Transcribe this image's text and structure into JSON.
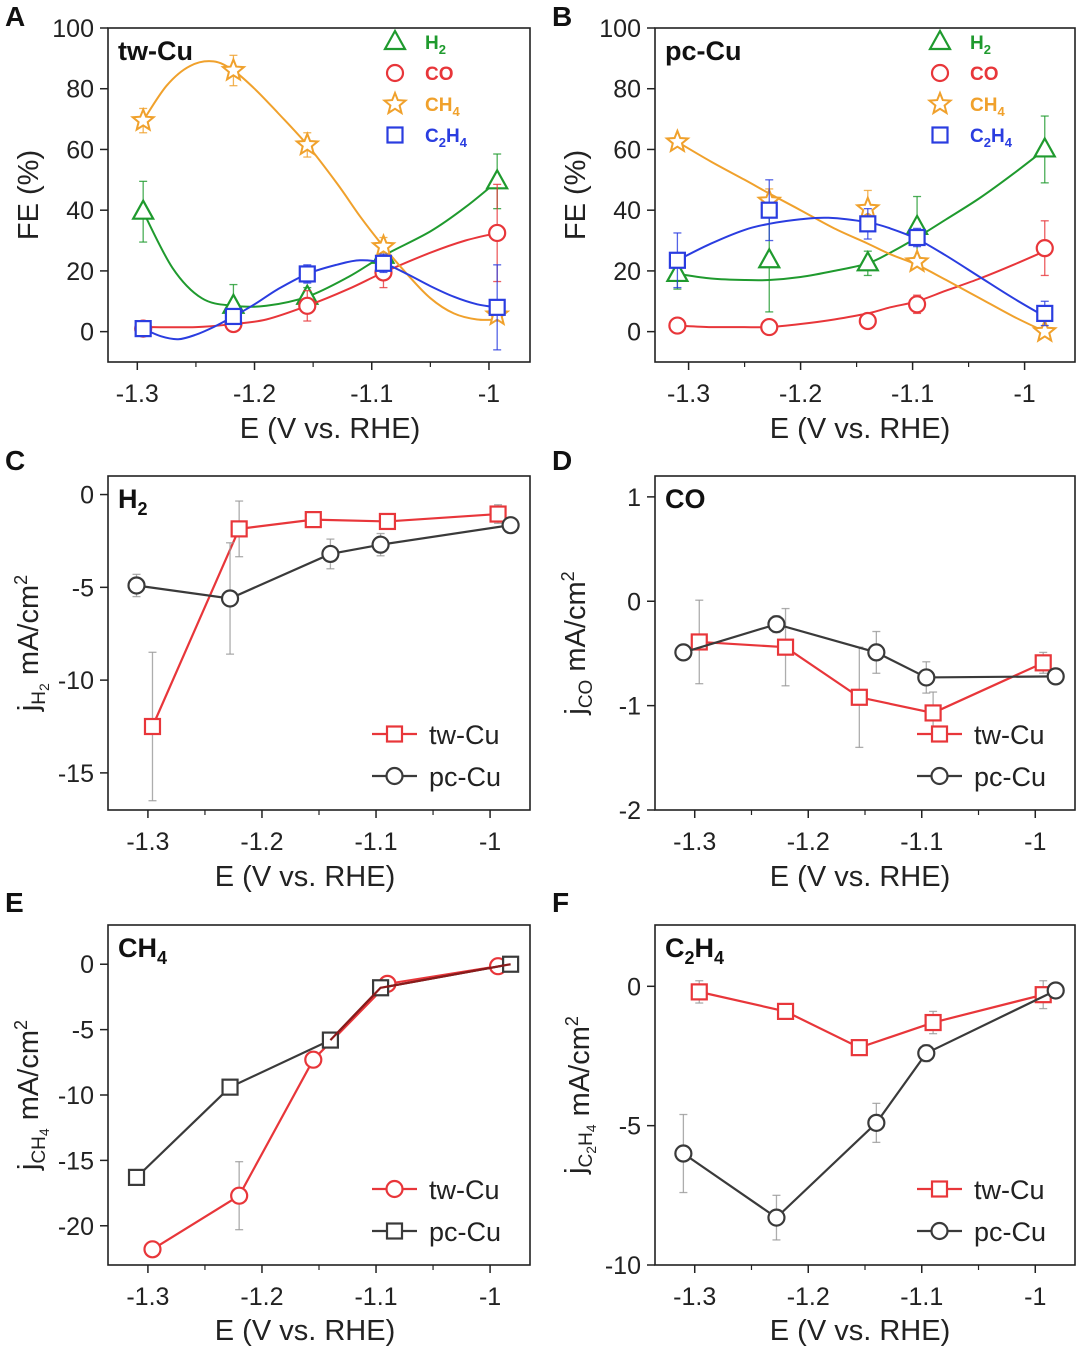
{
  "figure": {
    "colors": {
      "H2": "#1f9a2e",
      "CO": "#e8363a",
      "CH4": "#f0a12c",
      "C2H4": "#2a3de0",
      "tw": "#e8363a",
      "pc": "#3a3a3a",
      "axis": "#222222",
      "err": "#999999"
    }
  },
  "chart_data": [
    {
      "id": "A",
      "panel_label": "A",
      "type": "scatter",
      "title": "tw-Cu",
      "xlabel": "E (V vs. RHE)",
      "ylabel": "FE (%)",
      "xlim": [
        -1.325,
        -0.965
      ],
      "ylim": [
        -10,
        100
      ],
      "xticks": [
        -1.3,
        -1.2,
        -1.1,
        -1.0
      ],
      "xtick_labels": [
        "-1.3",
        "-1.2",
        "-1.1",
        "-1"
      ],
      "yticks": [
        0,
        20,
        40,
        60,
        80,
        100
      ],
      "ytick_labels": [
        "0",
        "20",
        "40",
        "60",
        "80",
        "100"
      ],
      "series": [
        {
          "name": "H2",
          "label": "H",
          "sub": "2",
          "marker": "triangle",
          "color": "H2",
          "x": [
            -1.295,
            -1.218,
            -1.155,
            -1.09,
            -0.993
          ],
          "y": [
            39.5,
            8.5,
            11.5,
            25,
            49.5
          ],
          "err": [
            10,
            7,
            3,
            3,
            9
          ],
          "fit_x": [
            -1.295,
            -1.27,
            -1.245,
            -1.218,
            -1.19,
            -1.155,
            -1.12,
            -1.09,
            -1.05,
            -1.02,
            -0.993
          ],
          "fit_y": [
            39.5,
            21,
            11,
            8.5,
            8.5,
            11.5,
            18,
            25,
            33,
            41,
            49.5
          ]
        },
        {
          "name": "CO",
          "label": "CO",
          "sub": "",
          "marker": "circle",
          "color": "CO",
          "x": [
            -1.295,
            -1.218,
            -1.155,
            -1.09,
            -0.993
          ],
          "y": [
            1,
            2.5,
            8.5,
            19.5,
            32.5
          ],
          "err": [
            1,
            1,
            5,
            5,
            16
          ],
          "fit_x": [
            -1.295,
            -1.25,
            -1.218,
            -1.19,
            -1.155,
            -1.12,
            -1.09,
            -1.05,
            -1.02,
            -0.993
          ],
          "fit_y": [
            1.5,
            1.5,
            2.5,
            4,
            8.5,
            14,
            19.5,
            26,
            30,
            32.5
          ]
        },
        {
          "name": "CH4",
          "label": "CH",
          "sub": "4",
          "marker": "star",
          "color": "CH4",
          "x": [
            -1.295,
            -1.218,
            -1.155,
            -1.09,
            -0.993
          ],
          "y": [
            69.5,
            86,
            61.5,
            28,
            5.5
          ],
          "err": [
            4,
            5,
            4,
            3,
            2
          ],
          "fit_x": [
            -1.295,
            -1.275,
            -1.255,
            -1.235,
            -1.218,
            -1.2,
            -1.18,
            -1.155,
            -1.13,
            -1.11,
            -1.09,
            -1.07,
            -1.05,
            -1.03,
            -1.01,
            -0.993
          ],
          "fit_y": [
            69.5,
            81,
            87.5,
            89,
            86,
            80,
            72,
            61.5,
            49,
            38,
            28,
            19,
            11,
            6,
            4,
            4
          ]
        },
        {
          "name": "C2H4",
          "label": "C",
          "sub": "2",
          "label2": "H",
          "sub2": "4",
          "marker": "square",
          "color": "C2H4",
          "x": [
            -1.295,
            -1.218,
            -1.155,
            -1.09,
            -0.993
          ],
          "y": [
            1,
            5,
            19,
            22.5,
            8
          ],
          "err": [
            1,
            2,
            3,
            3,
            14
          ],
          "fit_x": [
            -1.295,
            -1.28,
            -1.265,
            -1.25,
            -1.235,
            -1.218,
            -1.2,
            -1.18,
            -1.155,
            -1.13,
            -1.11,
            -1.09,
            -1.07,
            -1.05,
            -1.03,
            -1.01,
            -0.993
          ],
          "fit_y": [
            1,
            -1.5,
            -2.5,
            -1,
            1.5,
            5,
            9,
            14,
            19,
            22,
            23.5,
            22.5,
            19,
            15,
            11.5,
            9,
            8
          ]
        }
      ]
    },
    {
      "id": "B",
      "panel_label": "B",
      "type": "scatter",
      "title": "pc-Cu",
      "xlabel": "E (V vs. RHE)",
      "ylabel": "FE (%)",
      "xlim": [
        -1.33,
        -0.955
      ],
      "ylim": [
        -10,
        100
      ],
      "xticks": [
        -1.3,
        -1.2,
        -1.1,
        -1.0
      ],
      "xtick_labels": [
        "-1.3",
        "-1.2",
        "-1.1",
        "-1"
      ],
      "yticks": [
        0,
        20,
        40,
        60,
        80,
        100
      ],
      "ytick_labels": [
        "0",
        "20",
        "40",
        "60",
        "80",
        "100"
      ],
      "series": [
        {
          "name": "H2",
          "label": "H",
          "sub": "2",
          "marker": "triangle",
          "color": "H2",
          "x": [
            -1.31,
            -1.228,
            -1.14,
            -1.096,
            -0.982
          ],
          "y": [
            19,
            23.5,
            22.5,
            34.5,
            60
          ],
          "err": [
            5,
            17,
            4,
            10,
            11
          ],
          "fit_x": [
            -1.31,
            -1.28,
            -1.25,
            -1.228,
            -1.2,
            -1.17,
            -1.14,
            -1.12,
            -1.096,
            -1.07,
            -1.04,
            -1.01,
            -0.982
          ],
          "fit_y": [
            19,
            17.5,
            17,
            17,
            18,
            20,
            22.5,
            26,
            31,
            37,
            44,
            52,
            60
          ]
        },
        {
          "name": "CO",
          "label": "CO",
          "sub": "",
          "marker": "circle",
          "color": "CO",
          "x": [
            -1.31,
            -1.228,
            -1.14,
            -1.096,
            -0.982
          ],
          "y": [
            2,
            1.5,
            3.5,
            9,
            27.5
          ],
          "err": [
            1,
            1,
            2,
            3,
            9
          ],
          "fit_x": [
            -1.31,
            -1.28,
            -1.25,
            -1.228,
            -1.2,
            -1.17,
            -1.14,
            -1.12,
            -1.096,
            -1.07,
            -1.04,
            -1.01,
            -0.982
          ],
          "fit_y": [
            2,
            1.5,
            1.5,
            1.5,
            2.5,
            4,
            6,
            8,
            10,
            13.5,
            17.5,
            22,
            26.5
          ]
        },
        {
          "name": "CH4",
          "label": "CH",
          "sub": "4",
          "marker": "star",
          "color": "CH4",
          "x": [
            -1.31,
            -1.228,
            -1.14,
            -1.096,
            -0.982
          ],
          "y": [
            62.5,
            43,
            40.5,
            23,
            0
          ],
          "err": [
            1,
            4,
            6,
            1,
            1
          ],
          "fit_x": [
            -1.31,
            -1.28,
            -1.25,
            -1.228,
            -1.2,
            -1.17,
            -1.14,
            -1.12,
            -1.096,
            -1.07,
            -1.04,
            -1.01,
            -0.982
          ],
          "fit_y": [
            62.5,
            56,
            50,
            45.5,
            40,
            34,
            29,
            25.5,
            22,
            17,
            11,
            5,
            0
          ]
        },
        {
          "name": "C2H4",
          "label": "C",
          "sub": "2",
          "label2": "H",
          "sub2": "4",
          "marker": "square",
          "color": "C2H4",
          "x": [
            -1.31,
            -1.228,
            -1.14,
            -1.096,
            -0.982
          ],
          "y": [
            23.5,
            40,
            35.5,
            31,
            6
          ],
          "err": [
            9,
            10,
            5,
            3,
            4
          ],
          "fit_x": [
            -1.31,
            -1.28,
            -1.25,
            -1.228,
            -1.2,
            -1.175,
            -1.14,
            -1.12,
            -1.096,
            -1.07,
            -1.04,
            -1.01,
            -0.982
          ],
          "fit_y": [
            23.5,
            29,
            33.5,
            35.5,
            37,
            37.5,
            36,
            34,
            30.5,
            25,
            18,
            11,
            5
          ]
        }
      ]
    },
    {
      "id": "C",
      "panel_label": "C",
      "type": "line",
      "title": "H",
      "title_sub": "2",
      "xlabel": "E (V vs. RHE)",
      "ylabel": "j",
      "ylabel_sub": "H",
      "ylabel_sub2": "2",
      "ylabel_unit": " mA/cm",
      "ylabel_sup": "2",
      "xlim": [
        -1.335,
        -0.965
      ],
      "ylim": [
        -17,
        1
      ],
      "xticks": [
        -1.3,
        -1.2,
        -1.1,
        -1.0
      ],
      "xtick_labels": [
        "-1.3",
        "-1.2",
        "-1.1",
        "-1"
      ],
      "yticks": [
        0,
        -5,
        -10,
        -15
      ],
      "ytick_labels": [
        "0",
        "-5",
        "-10",
        "-15"
      ],
      "series": [
        {
          "name": "tw-Cu",
          "marker": "square",
          "color": "tw",
          "x": [
            -1.296,
            -1.22,
            -1.155,
            -1.09,
            -0.993
          ],
          "y": [
            -12.5,
            -1.85,
            -1.35,
            -1.45,
            -1.05
          ],
          "err": [
            4,
            1.5,
            0.3,
            0.4,
            0.5
          ]
        },
        {
          "name": "pc-Cu",
          "marker": "circle",
          "color": "pc",
          "x": [
            -1.31,
            -1.228,
            -1.14,
            -1.096,
            -0.982
          ],
          "y": [
            -4.9,
            -5.6,
            -3.2,
            -2.7,
            -1.65
          ],
          "err": [
            0.6,
            3.0,
            0.8,
            0.6,
            0.2
          ]
        }
      ]
    },
    {
      "id": "D",
      "panel_label": "D",
      "type": "line",
      "title": "CO",
      "title_sub": "",
      "xlabel": "E (V vs. RHE)",
      "ylabel": "j",
      "ylabel_sub": "CO",
      "ylabel_sub2": "",
      "ylabel_unit": " mA/cm",
      "ylabel_sup": "2",
      "xlim": [
        -1.335,
        -0.965
      ],
      "ylim": [
        -2,
        1.2
      ],
      "xticks": [
        -1.3,
        -1.2,
        -1.1,
        -1.0
      ],
      "xtick_labels": [
        "-1.3",
        "-1.2",
        "-1.1",
        "-1"
      ],
      "yticks": [
        1,
        0,
        -1,
        -2
      ],
      "ytick_labels": [
        "1",
        "0",
        "-1",
        "-2"
      ],
      "series": [
        {
          "name": "tw-Cu",
          "marker": "square",
          "color": "tw",
          "x": [
            -1.296,
            -1.22,
            -1.155,
            -1.09,
            -0.993
          ],
          "y": [
            -0.39,
            -0.44,
            -0.92,
            -1.07,
            -0.59
          ],
          "err": [
            0.4,
            0.37,
            0.48,
            0.2,
            0.1
          ]
        },
        {
          "name": "pc-Cu",
          "marker": "circle",
          "color": "pc",
          "x": [
            -1.31,
            -1.228,
            -1.14,
            -1.096,
            -0.982
          ],
          "y": [
            -0.49,
            -0.22,
            -0.49,
            -0.73,
            -0.72
          ],
          "err": [
            0.05,
            0.08,
            0.2,
            0.15,
            0.05
          ]
        }
      ]
    },
    {
      "id": "E",
      "panel_label": "E",
      "type": "line",
      "title": "CH",
      "title_sub": "4",
      "xlabel": "E (V vs. RHE)",
      "ylabel": "j",
      "ylabel_sub": "CH",
      "ylabel_sub2": "4",
      "ylabel_unit": " mA/cm",
      "ylabel_sup": "2",
      "xlim": [
        -1.335,
        -0.965
      ],
      "ylim": [
        -23,
        3
      ],
      "xticks": [
        -1.3,
        -1.2,
        -1.1,
        -1.0
      ],
      "xtick_labels": [
        "-1.3",
        "-1.2",
        "-1.1",
        "-1"
      ],
      "yticks": [
        0,
        -5,
        -10,
        -15,
        -20
      ],
      "ytick_labels": [
        "0",
        "-5",
        "-10",
        "-15",
        "-20"
      ],
      "series": [
        {
          "name": "tw-Cu",
          "marker": "circle",
          "color": "tw",
          "x": [
            -1.296,
            -1.22,
            -1.155,
            -1.09,
            -0.993
          ],
          "y": [
            -21.8,
            -17.7,
            -7.3,
            -1.5,
            -0.15
          ],
          "err": [
            0.2,
            2.6,
            0.6,
            0.3,
            0.1
          ]
        },
        {
          "name": "pc-Cu",
          "marker": "square",
          "color": "pc",
          "x": [
            -1.31,
            -1.228,
            -1.14,
            -1.096,
            -0.982
          ],
          "y": [
            -16.3,
            -9.4,
            -5.8,
            -1.8,
            0
          ]
        },
        {
          "name": "",
          "marker": "none",
          "color": "#8b1a1a",
          "legend": false,
          "x": [
            -1.14,
            -1.096,
            -0.982
          ],
          "y": [
            -5.8,
            -1.8,
            0
          ]
        }
      ]
    },
    {
      "id": "F",
      "panel_label": "F",
      "type": "line",
      "title": "C",
      "title_sub": "2",
      "title2": "H",
      "title_sub2": "4",
      "xlabel": "E (V vs. RHE)",
      "ylabel": "j",
      "ylabel_sub": "C",
      "ylabel_sub2": "2",
      "ylabel_sub3": "H",
      "ylabel_sub4": "4",
      "ylabel_unit": " mA/cm",
      "ylabel_sup": "2",
      "xlim": [
        -1.335,
        -0.965
      ],
      "ylim": [
        -10,
        2.2
      ],
      "xticks": [
        -1.3,
        -1.2,
        -1.1,
        -1.0
      ],
      "xtick_labels": [
        "-1.3",
        "-1.2",
        "-1.1",
        "-1"
      ],
      "yticks": [
        0,
        -5,
        -10
      ],
      "ytick_labels": [
        "0",
        "-5",
        "-10"
      ],
      "series": [
        {
          "name": "tw-Cu",
          "marker": "square",
          "color": "tw",
          "x": [
            -1.296,
            -1.22,
            -1.155,
            -1.09,
            -0.993
          ],
          "y": [
            -0.2,
            -0.9,
            -2.2,
            -1.3,
            -0.3
          ],
          "err": [
            0.4,
            0.1,
            0.15,
            0.4,
            0.5
          ]
        },
        {
          "name": "pc-Cu",
          "marker": "circle",
          "color": "pc",
          "x": [
            -1.31,
            -1.228,
            -1.14,
            -1.096,
            -0.982
          ],
          "y": [
            -6.0,
            -8.3,
            -4.9,
            -2.4,
            -0.15
          ],
          "err": [
            1.4,
            0.8,
            0.7,
            0.3,
            0.1
          ]
        }
      ]
    }
  ]
}
